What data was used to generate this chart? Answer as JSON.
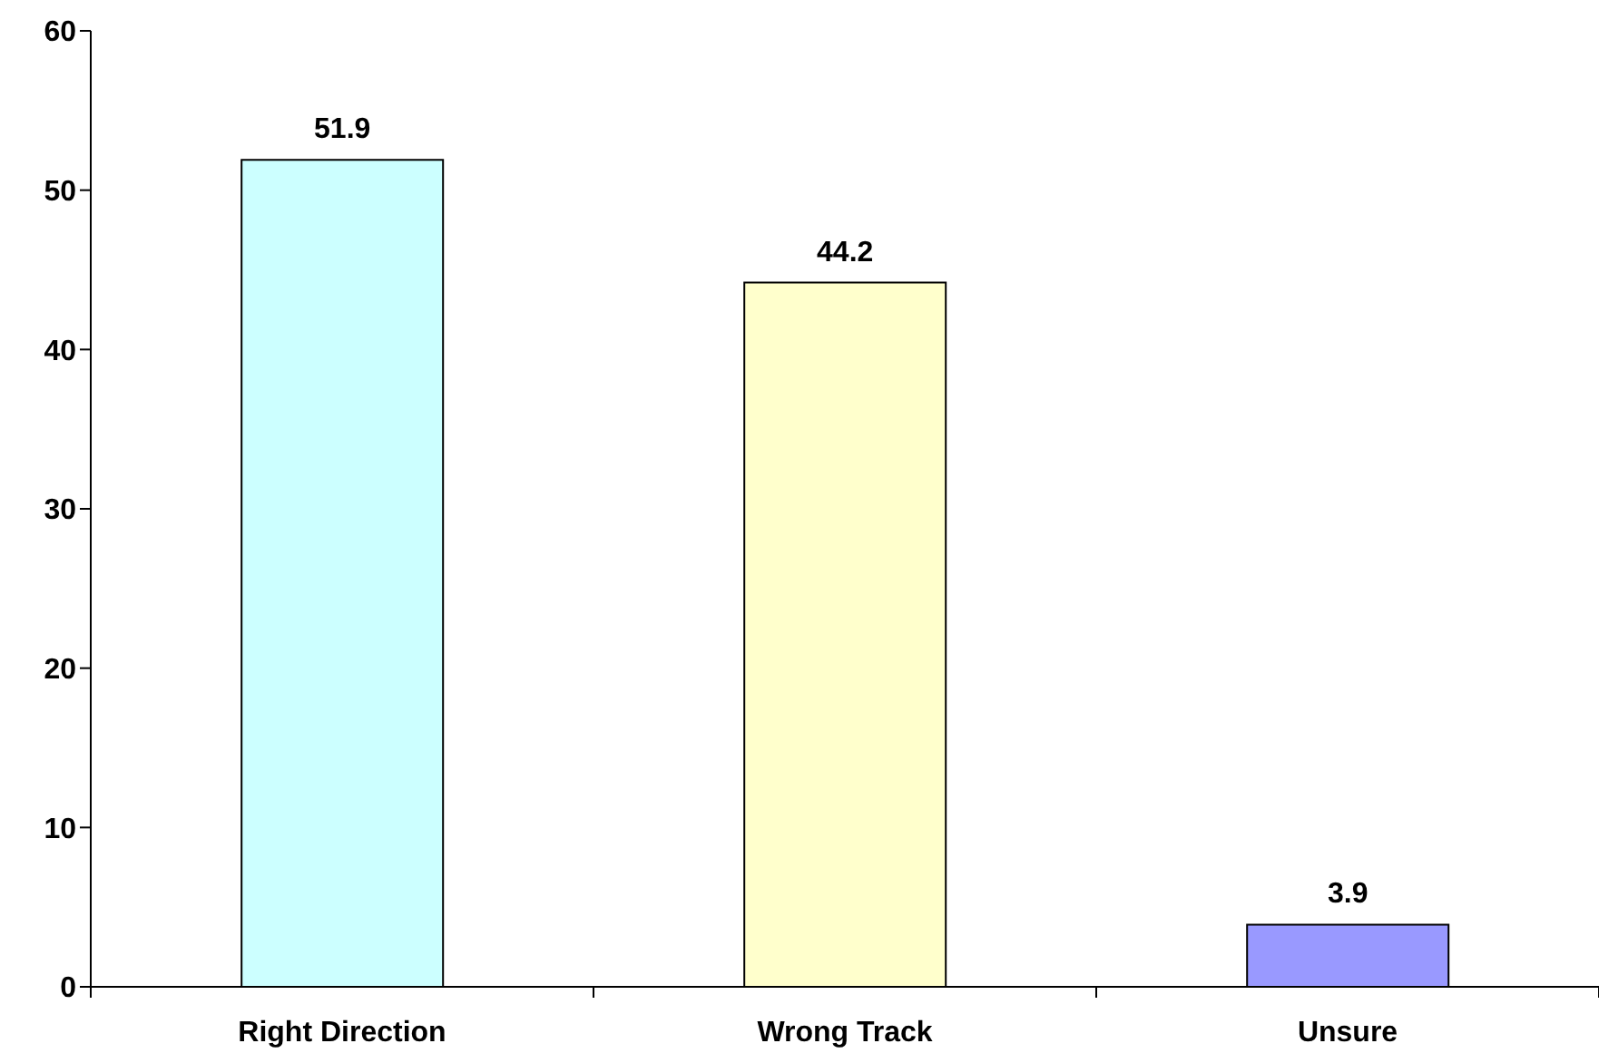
{
  "chart_data": {
    "type": "bar",
    "categories": [
      "Right Direction",
      "Wrong Track",
      "Unsure"
    ],
    "values": [
      51.9,
      44.2,
      3.9
    ],
    "colors": [
      "#ccffff",
      "#ffffcc",
      "#9999ff"
    ],
    "ylim": [
      0,
      60
    ],
    "yticks": [
      0,
      10,
      20,
      30,
      40,
      50,
      60
    ],
    "data_labels": true
  }
}
